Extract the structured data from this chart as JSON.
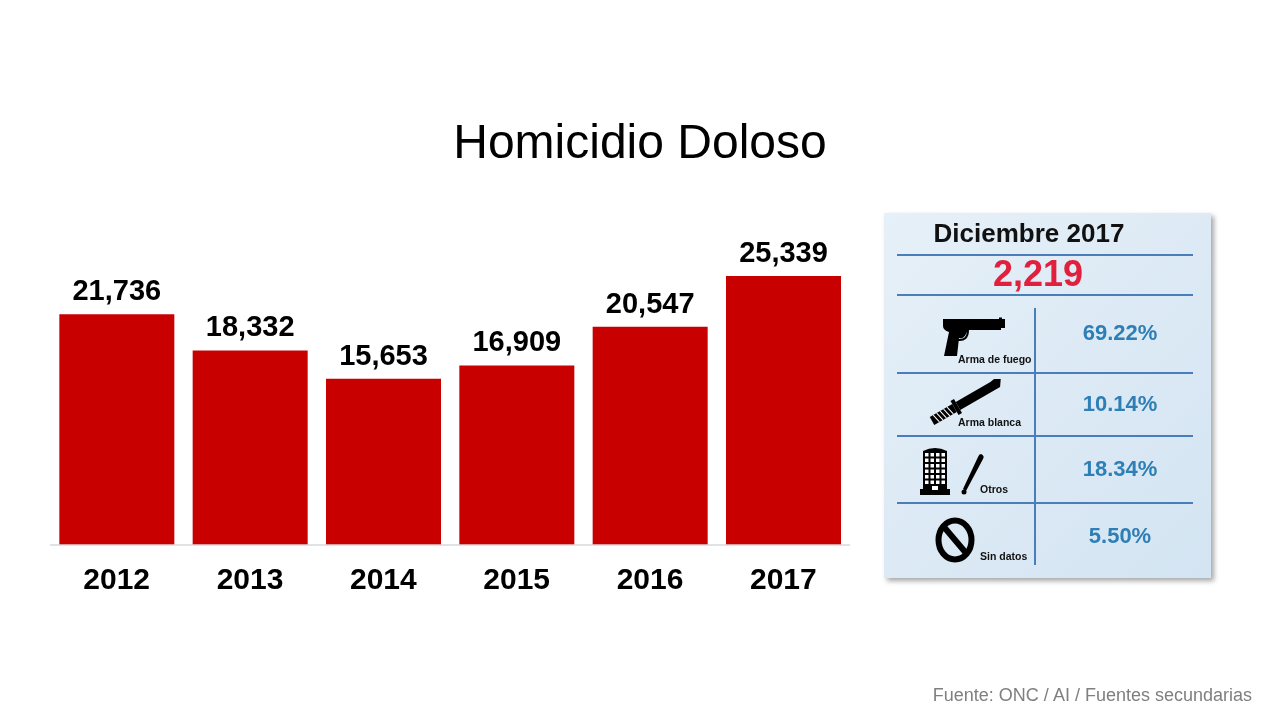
{
  "chart_data": [
    {
      "type": "bar",
      "title": "Homicidio Doloso",
      "categories": [
        "2012",
        "2013",
        "2014",
        "2015",
        "2016",
        "2017"
      ],
      "values": [
        21736,
        18332,
        15653,
        16909,
        20547,
        25339
      ],
      "value_labels": [
        "21,736",
        "18,332",
        "15,653",
        "16,909",
        "20,547",
        "25,339"
      ],
      "color": "#c80000",
      "annotations": [
        "Fuente: ONC / AI / Fuentes secundarias"
      ]
    },
    {
      "type": "other",
      "title": "Diciembre 2017",
      "subtitle": "2,219",
      "categories": [
        "Arma de fuego",
        "Arma blanca",
        "Otros",
        "Sin datos"
      ],
      "value_labels": [
        "69.22%",
        "10.14%",
        "18.34%",
        "5.50%"
      ]
    }
  ]
}
